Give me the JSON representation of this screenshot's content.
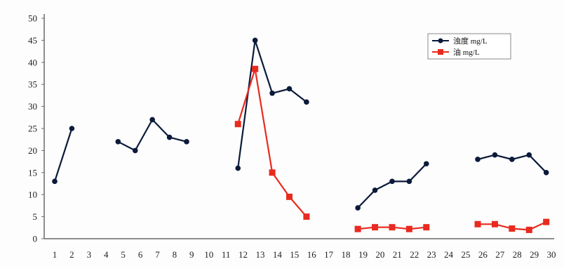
{
  "chart_data": {
    "type": "line",
    "x": [
      1,
      2,
      3,
      4,
      5,
      6,
      7,
      8,
      9,
      10,
      11,
      12,
      13,
      14,
      15,
      16,
      17,
      18,
      19,
      20,
      21,
      22,
      23,
      24,
      25,
      26,
      27,
      28,
      29,
      30
    ],
    "ylim": [
      0,
      50
    ],
    "yticks": [
      0,
      5,
      10,
      15,
      20,
      25,
      30,
      35,
      40,
      45,
      50
    ],
    "xticks": [
      1,
      2,
      3,
      4,
      5,
      6,
      7,
      8,
      9,
      10,
      11,
      12,
      13,
      14,
      15,
      16,
      17,
      18,
      19,
      20,
      21,
      22,
      23,
      24,
      25,
      26,
      27,
      28,
      29,
      30
    ],
    "grid": false,
    "legend_position": "top-right",
    "series": [
      {
        "name": "浊度 mg/L",
        "color": "#0b1a3a",
        "marker": "circle",
        "segments": [
          [
            [
              1,
              13
            ],
            [
              2,
              25
            ]
          ],
          [
            [
              4.7,
              22
            ],
            [
              5.7,
              20
            ],
            [
              6.7,
              27
            ],
            [
              7.7,
              23
            ],
            [
              8.7,
              22
            ]
          ],
          [
            [
              11.7,
              16
            ],
            [
              12.7,
              45
            ],
            [
              13.7,
              33
            ],
            [
              14.7,
              34
            ],
            [
              15.7,
              31
            ]
          ],
          [
            [
              18.7,
              7
            ],
            [
              19.7,
              11
            ],
            [
              20.7,
              13
            ],
            [
              21.7,
              13
            ],
            [
              22.7,
              17
            ]
          ],
          [
            [
              25.7,
              18
            ],
            [
              26.7,
              19
            ],
            [
              27.7,
              18
            ],
            [
              28.7,
              19
            ],
            [
              29.7,
              15
            ]
          ]
        ]
      },
      {
        "name": "油 mg/L",
        "color": "#e82a1f",
        "marker": "square",
        "segments": [
          [
            [
              11.7,
              26
            ],
            [
              12.7,
              38.5
            ],
            [
              13.7,
              15
            ],
            [
              14.7,
              9.5
            ],
            [
              15.7,
              5
            ]
          ],
          [
            [
              18.7,
              2.2
            ],
            [
              19.7,
              2.6
            ],
            [
              20.7,
              2.6
            ],
            [
              21.7,
              2.2
            ],
            [
              22.7,
              2.6
            ]
          ],
          [
            [
              25.7,
              3.3
            ],
            [
              26.7,
              3.3
            ],
            [
              27.7,
              2.3
            ],
            [
              28.7,
              2
            ],
            [
              29.7,
              3.8
            ]
          ]
        ]
      }
    ]
  }
}
